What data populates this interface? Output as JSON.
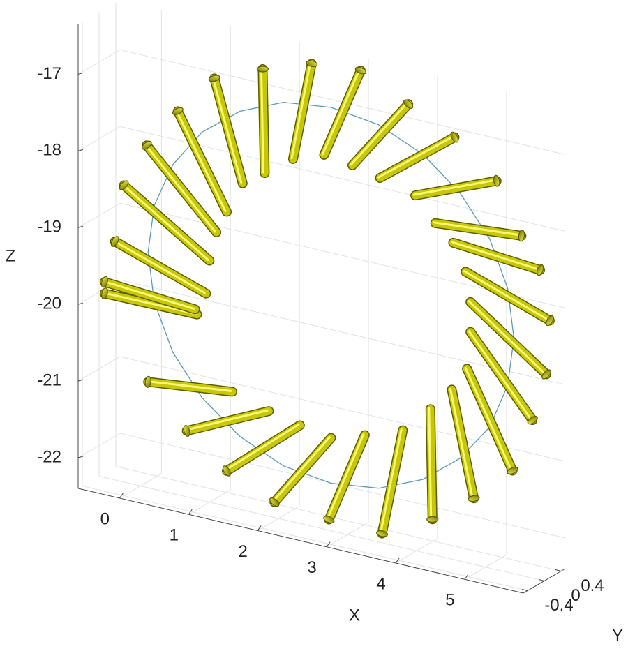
{
  "chart_data": {
    "type": "rod-3d",
    "xlabel": "X",
    "ylabel": "Y",
    "zlabel": "Z",
    "xlim": [
      -0.6,
      5.85
    ],
    "ylim": [
      -0.5,
      0.5
    ],
    "zlim": [
      -22.4,
      -16.35
    ],
    "xticks": [
      0,
      1,
      2,
      3,
      4,
      5
    ],
    "yticks": [
      -0.4,
      0,
      0.4
    ],
    "zticks": [
      -22,
      -21,
      -20,
      -19,
      -18,
      -17
    ],
    "grid": true,
    "trajectory": {
      "color": "#5a9ab8",
      "y": 0,
      "x": [
        5.41,
        5.32,
        5.06,
        4.63,
        4.09,
        3.45,
        2.76,
        2.07,
        1.44,
        0.89,
        0.47,
        0.2,
        0.11,
        0.2,
        0.47,
        0.89,
        1.44,
        2.07,
        2.76,
        3.45,
        4.09,
        4.63,
        5.06,
        5.32,
        5.41
      ],
      "z": [
        -19.33,
        -18.7,
        -18.11,
        -17.6,
        -17.21,
        -16.96,
        -16.88,
        -16.96,
        -17.21,
        -17.6,
        -18.11,
        -18.7,
        -19.33,
        -19.96,
        -20.56,
        -21.06,
        -21.45,
        -21.7,
        -21.78,
        -21.7,
        -21.45,
        -21.06,
        -20.56,
        -19.96,
        -19.33
      ]
    },
    "rods": {
      "color": "#c8c800",
      "y": 0,
      "x1": [
        1.77,
        2.48,
        3.19,
        3.88,
        4.55,
        5.16,
        5.52,
        5.79,
        5.93,
        5.88,
        5.68,
        5.39,
        4.83,
        4.23,
        3.5,
        2.73,
        1.94,
        1.25,
        0.67,
        0.11,
        -0.52,
        -0.52,
        -0.37,
        -0.24,
        0.09,
        0.54,
        1.07
      ],
      "z1": [
        -16.59,
        -16.37,
        -16.31,
        -16.6,
        -16.89,
        -17.33,
        -17.97,
        -18.36,
        -18.99,
        -19.7,
        -20.34,
        -21.06,
        -21.54,
        -21.94,
        -22.28,
        -22.26,
        -22.2,
        -21.94,
        -21.54,
        -21.02,
        -20.0,
        -19.85,
        -19.29,
        -18.53,
        -17.94,
        -17.4,
        -16.86
      ],
      "x2": [
        1.8,
        2.21,
        2.66,
        3.07,
        3.47,
        3.98,
        4.27,
        4.53,
        4.71,
        4.78,
        4.78,
        4.73,
        4.51,
        4.2,
        3.8,
        3.25,
        2.76,
        2.31,
        1.86,
        1.33,
        0.82,
        0.79,
        0.95,
        1.0,
        1.1,
        1.25,
        1.48
      ],
      "z2": [
        -17.94,
        -17.67,
        -17.52,
        -17.57,
        -17.65,
        -17.77,
        -18.07,
        -18.27,
        -18.61,
        -18.99,
        -19.38,
        -19.87,
        -20.19,
        -20.51,
        -20.87,
        -21.05,
        -21.19,
        -21.12,
        -21.03,
        -20.89,
        -19.99,
        -19.93,
        -19.69,
        -19.25,
        -18.86,
        -18.56,
        -18.14
      ]
    }
  }
}
